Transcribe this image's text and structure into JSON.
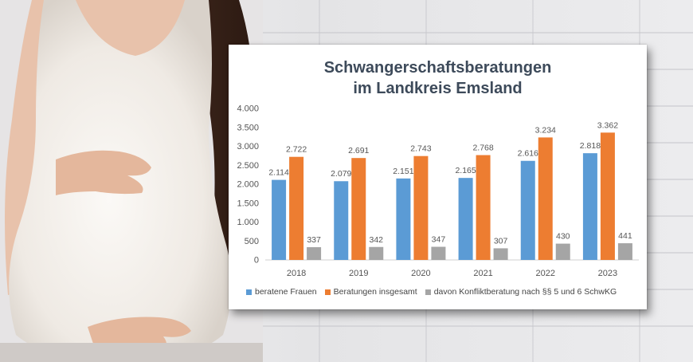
{
  "colors": {
    "series1": "#5b9bd5",
    "series2": "#ed7d31",
    "series3": "#a5a5a5",
    "title": "#3d4a5a"
  },
  "chart_data": {
    "type": "bar",
    "title_line1": "Schwangerschaftsberatungen",
    "title_line2": "im Landkreis Emsland",
    "categories": [
      "2018",
      "2019",
      "2020",
      "2021",
      "2022",
      "2023"
    ],
    "series": [
      {
        "name": "beratene Frauen",
        "values": [
          2114,
          2079,
          2151,
          2165,
          2616,
          2818
        ],
        "labels": [
          "2.114",
          "2.079",
          "2.151",
          "2.165",
          "2.616",
          "2.818"
        ]
      },
      {
        "name": "Beratungen insgesamt",
        "values": [
          2722,
          2691,
          2743,
          2768,
          3234,
          3362
        ],
        "labels": [
          "2.722",
          "2.691",
          "2.743",
          "2.768",
          "3.234",
          "3.362"
        ]
      },
      {
        "name": "davon Konfliktberatung nach §§ 5 und 6 SchwKG",
        "values": [
          337,
          342,
          347,
          307,
          430,
          441
        ],
        "labels": [
          "337",
          "342",
          "347",
          "307",
          "430",
          "441"
        ]
      }
    ],
    "ylim": [
      0,
      4000
    ],
    "yticks": [
      0,
      500,
      1000,
      1500,
      2000,
      2500,
      3000,
      3500,
      4000
    ],
    "ytick_labels": [
      "0",
      "500",
      "1.000",
      "1.500",
      "2.000",
      "2.500",
      "3.000",
      "3.500",
      "4.000"
    ],
    "legend_position": "bottom",
    "grid": false
  }
}
